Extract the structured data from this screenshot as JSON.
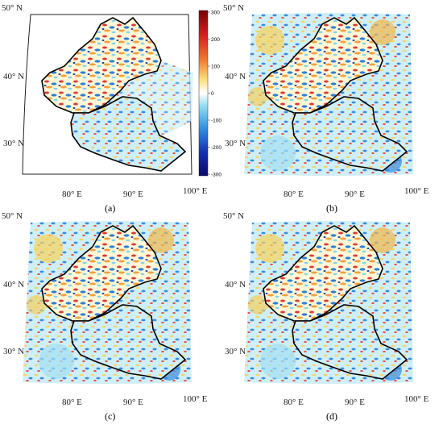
{
  "colorbar": {
    "ticks": [
      "300",
      "200",
      "100",
      "0",
      "-100",
      "-200",
      "-300"
    ],
    "colors": [
      "#7a0000",
      "#d61f1f",
      "#f07a30",
      "#fde07a",
      "#ffffff",
      "#8fdcf0",
      "#2d8be0",
      "#1530b0",
      "#0a0a6a"
    ]
  },
  "panels": [
    {
      "caption": "(a)",
      "lat_labels": [
        "50° N",
        "40° N",
        "30° N"
      ],
      "lon_labels": [
        "80° E",
        "90° E",
        "100° E"
      ]
    },
    {
      "caption": "(b)",
      "lat_labels": [
        "50° N",
        "40° N",
        "30° N"
      ],
      "lon_labels": [
        "80° E",
        "90° E",
        "100° E"
      ]
    },
    {
      "caption": "(c)",
      "lat_labels": [
        "50° N",
        "40° N",
        "30° N"
      ],
      "lon_labels": [
        "80° E",
        "90° E",
        "100° E"
      ]
    },
    {
      "caption": "(d)",
      "lat_labels": [
        "50° N",
        "40° N",
        "30° N"
      ],
      "lon_labels": [
        "80° E",
        "90° E",
        "100° E"
      ]
    }
  ]
}
